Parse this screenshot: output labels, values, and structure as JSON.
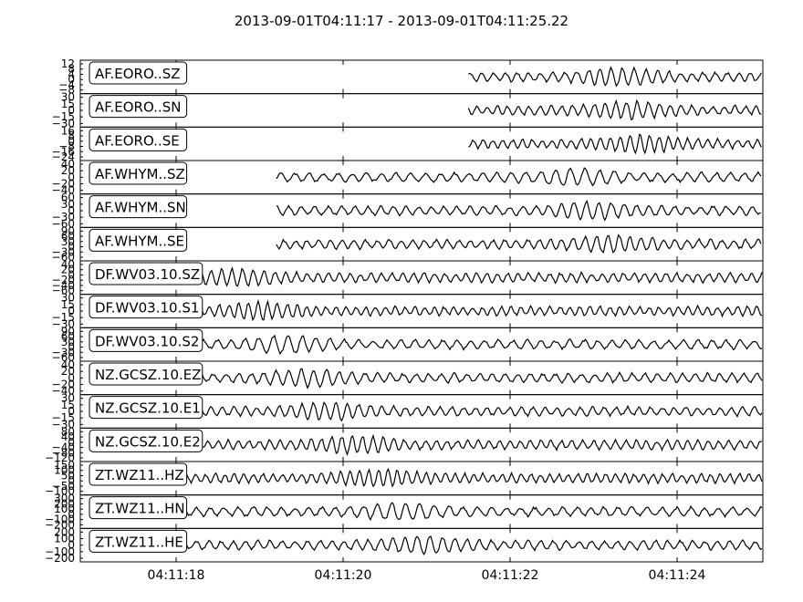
{
  "chart_data": {
    "type": "line",
    "title": "2013-09-01T04:11:17  -  2013-09-01T04:11:25.22",
    "xlabel": "",
    "x_ticks": [
      "04:11:18",
      "04:11:20",
      "04:11:22",
      "04:11:24"
    ],
    "time_range": [
      "2013-09-01T04:11:17",
      "2013-09-01T04:11:25.22"
    ],
    "grid": false,
    "series": [
      {
        "name": "AF.EORO..SZ",
        "start": 4.5,
        "end": 25.22,
        "yticks": [
          "12",
          "8",
          "4",
          "0",
          "−4",
          "−8"
        ]
      },
      {
        "name": "AF.EORO..SN",
        "start": 4.5,
        "end": 25.22,
        "yticks": [
          "30",
          "15",
          "0",
          "−15",
          "−30"
        ]
      },
      {
        "name": "AF.EORO..SE",
        "start": 4.5,
        "end": 25.22,
        "yticks": [
          "16",
          "8",
          "0",
          "−8",
          "−16",
          "−24"
        ]
      },
      {
        "name": "AF.WHYM..SZ",
        "start": 2.2,
        "end": 24.2,
        "yticks": [
          "40",
          "20",
          "0",
          "−20",
          "−40"
        ]
      },
      {
        "name": "AF.WHYM..SN",
        "start": 2.2,
        "end": 24.2,
        "yticks": [
          "60",
          "30",
          "0",
          "−30",
          "−60"
        ]
      },
      {
        "name": "AF.WHYM..SE",
        "start": 2.2,
        "end": 24.2,
        "yticks": [
          "90",
          "60",
          "30",
          "0",
          "−30",
          "−60"
        ]
      },
      {
        "name": "DF.WV03.10.SZ",
        "start": 0.0,
        "end": 23.0,
        "yticks": [
          "40",
          "20",
          "0",
          "−20",
          "−40",
          "−60"
        ]
      },
      {
        "name": "DF.WV03.10.S1",
        "start": 0.0,
        "end": 23.0,
        "yticks": [
          "30",
          "15",
          "0",
          "−15",
          "−30"
        ]
      },
      {
        "name": "DF.WV03.10.S2",
        "start": 0.0,
        "end": 23.0,
        "yticks": [
          "90",
          "60",
          "30",
          "0",
          "−30",
          "−60"
        ]
      },
      {
        "name": "NZ.GCSZ.10.EZ",
        "start": 0.0,
        "end": 23.1,
        "yticks": [
          "40",
          "20",
          "0",
          "−20",
          "−40"
        ]
      },
      {
        "name": "NZ.GCSZ.10.E1",
        "start": 0.0,
        "end": 23.1,
        "yticks": [
          "30",
          "15",
          "0",
          "−15",
          "−30"
        ]
      },
      {
        "name": "NZ.GCSZ.10.E2",
        "start": 0.0,
        "end": 23.1,
        "yticks": [
          "80",
          "40",
          "0",
          "−40",
          "−80",
          "−120"
        ]
      },
      {
        "name": "ZT.WZ11..HZ",
        "start": 0.0,
        "end": 23.0,
        "yticks": [
          "150",
          "100",
          "50",
          "0",
          "−50",
          "−100"
        ]
      },
      {
        "name": "ZT.WZ11..HN",
        "start": 0.0,
        "end": 23.0,
        "yticks": [
          "300",
          "200",
          "100",
          "0",
          "−100",
          "−200"
        ]
      },
      {
        "name": "ZT.WZ11..HE",
        "start": 0.0,
        "end": 23.0,
        "yticks": [
          "200",
          "100",
          "0",
          "−100",
          "−200"
        ]
      }
    ]
  }
}
